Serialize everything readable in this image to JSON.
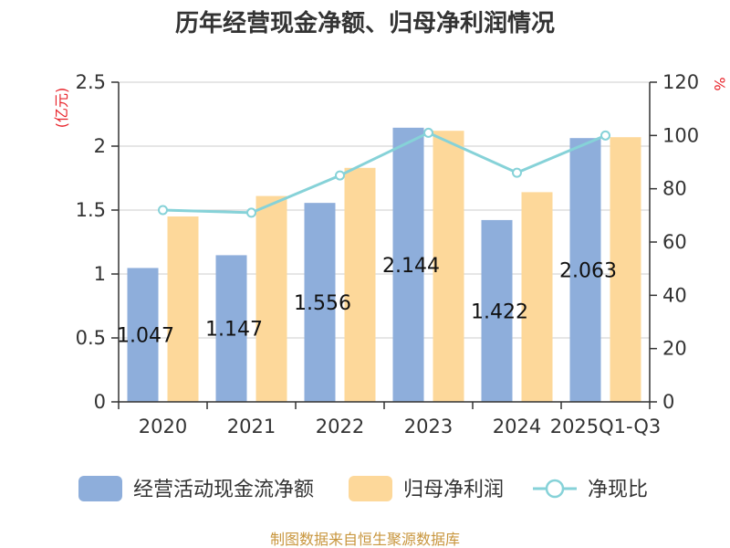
{
  "title": "历年经营现金净额、归母净利润情况",
  "source": "制图数据来自恒生聚源数据库",
  "colors": {
    "cash_bar": "#8eaedb",
    "profit_bar": "#fdd89a",
    "ratio_line": "#86d2d8",
    "axis": "#333333",
    "grid": "#cccccc",
    "unit_red": "#e8232a",
    "source": "#c8963e"
  },
  "chart_data": {
    "type": "bar",
    "title": "历年经营现金净额、归母净利润情况",
    "categories": [
      "2020",
      "2021",
      "2022",
      "2023",
      "2024",
      "2025Q1-Q3"
    ],
    "left_axis": {
      "unit": "(亿元)",
      "ylim": [
        0,
        2.5
      ],
      "ticks": [
        "0",
        "0.5",
        "1",
        "1.5",
        "2",
        "2.5"
      ]
    },
    "right_axis": {
      "unit": "%",
      "ylim": [
        0,
        120
      ],
      "ticks": [
        "0",
        "20",
        "40",
        "60",
        "80",
        "100",
        "120"
      ]
    },
    "grid": true,
    "legend_position": "bottom",
    "series": [
      {
        "name": "经营活动现金流净额",
        "type": "bar",
        "axis": "left",
        "values": [
          1.047,
          1.147,
          1.556,
          2.144,
          1.422,
          2.063
        ],
        "labels": [
          "1.047",
          "1.147",
          "1.556",
          "2.144",
          "1.422",
          "2.063"
        ]
      },
      {
        "name": "归母净利润",
        "type": "bar",
        "axis": "left",
        "values": [
          1.45,
          1.61,
          1.83,
          2.12,
          1.64,
          2.07
        ]
      },
      {
        "name": "净现比",
        "type": "line",
        "axis": "right",
        "values": [
          72,
          71,
          85,
          101,
          86,
          100
        ]
      }
    ]
  }
}
